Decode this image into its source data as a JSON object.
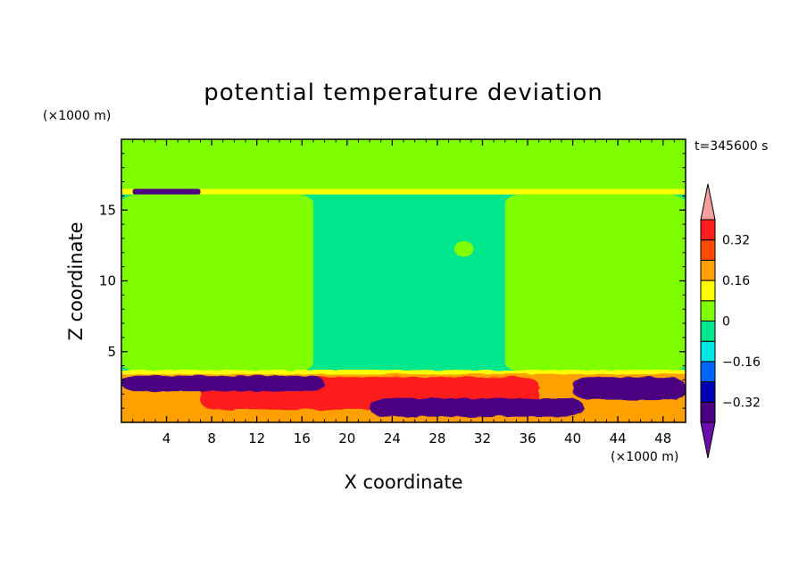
{
  "chart_data": {
    "type": "heatmap",
    "title": "potential temperature deviation",
    "xlabel": "X coordinate",
    "ylabel": "Z coordinate",
    "x_unit": "(×1000 m)",
    "y_unit": "(×1000 m)",
    "time_label": "t=345600 s",
    "xlim": [
      0,
      50
    ],
    "ylim": [
      0,
      20
    ],
    "x_ticks": [
      4,
      8,
      12,
      16,
      20,
      24,
      28,
      32,
      36,
      40,
      44,
      48
    ],
    "y_ticks": [
      5,
      10,
      15
    ],
    "colorbar": {
      "levels": [
        -0.4,
        -0.32,
        -0.24,
        -0.16,
        -0.08,
        0,
        0.08,
        0.16,
        0.24,
        0.32,
        0.4
      ],
      "labels": [
        "0.32",
        "0.16",
        "0",
        "-0.16",
        "-0.32"
      ],
      "label_values": [
        0.32,
        0.16,
        0,
        -0.16,
        -0.32
      ],
      "colors_bottom_to_top": [
        "#6a0dad",
        "#4b0082",
        "#0000b4",
        "#0064ff",
        "#00e6e6",
        "#00e68c",
        "#80ff00",
        "#ffff00",
        "#ffa000",
        "#ff4b00",
        "#ff1e1e",
        "#f5a0a0"
      ],
      "extend": "both"
    },
    "regions": [
      {
        "name": "upper background",
        "value": 0.04,
        "x": [
          0,
          50
        ],
        "z": [
          16.3,
          20
        ]
      },
      {
        "name": "upper-left tongue",
        "value": 0.04,
        "x": [
          0,
          13
        ],
        "z": [
          16.3,
          20
        ]
      },
      {
        "name": "upper-right tongue",
        "value": 0.04,
        "x": [
          37,
          50
        ],
        "z": [
          16.3,
          20
        ]
      },
      {
        "name": "tropopause band",
        "value": 0.12,
        "x": [
          0,
          50
        ],
        "z": [
          16.1,
          16.5
        ]
      },
      {
        "name": "tropopause cold spot",
        "value": -0.36,
        "x": [
          1,
          7
        ],
        "z": [
          16.1,
          16.5
        ]
      },
      {
        "name": "mid-level neutral",
        "value": -0.04,
        "x": [
          0,
          50
        ],
        "z": [
          3.6,
          16.1
        ]
      },
      {
        "name": "mid-level warm west",
        "value": 0.04,
        "x": [
          0,
          17
        ],
        "z": [
          3.6,
          16.1
        ]
      },
      {
        "name": "mid-level warm east",
        "value": 0.04,
        "x": [
          34,
          50
        ],
        "z": [
          3.6,
          16.1
        ]
      },
      {
        "name": "warm blob",
        "value": 0.04,
        "x": [
          29.5,
          31.2
        ],
        "z": [
          11.7,
          12.8
        ]
      },
      {
        "name": "inversion top",
        "value": 0.12,
        "x": [
          0,
          50
        ],
        "z": [
          3.4,
          3.7
        ]
      },
      {
        "name": "lower warm layer",
        "value": 0.36,
        "x": [
          7,
          37
        ],
        "z": [
          0.9,
          3.2
        ]
      },
      {
        "name": "lower cold lens",
        "value": -0.36,
        "x": [
          22,
          41
        ],
        "z": [
          0.4,
          1.7
        ]
      },
      {
        "name": "lower-left cold",
        "value": -0.36,
        "x": [
          0,
          18
        ],
        "z": [
          2.2,
          3.3
        ]
      },
      {
        "name": "lower-right cold",
        "value": -0.36,
        "x": [
          40,
          50
        ],
        "z": [
          1.6,
          3.2
        ]
      }
    ]
  }
}
